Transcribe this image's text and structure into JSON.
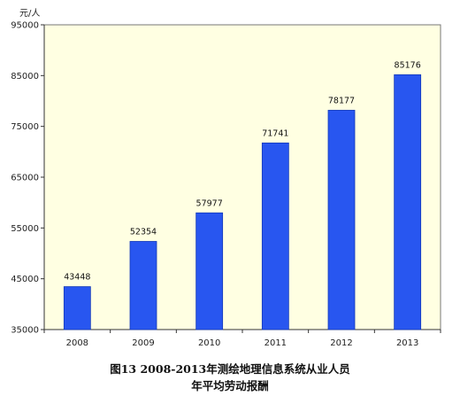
{
  "chart_data": {
    "type": "bar",
    "unit_label": "元/人",
    "categories": [
      "2008",
      "2009",
      "2010",
      "2011",
      "2012",
      "2013"
    ],
    "values": [
      43448,
      52354,
      57977,
      71741,
      78177,
      85176
    ],
    "data_labels": [
      "43448",
      "52354",
      "57977",
      "71741",
      "78177",
      "85176"
    ],
    "yticks": [
      35000,
      45000,
      55000,
      65000,
      75000,
      85000,
      95000
    ],
    "ytick_labels": [
      "35000",
      "45000",
      "55000",
      "65000",
      "75000",
      "85000",
      "95000"
    ],
    "ylim": [
      35000,
      95000
    ],
    "grid": false,
    "colors": {
      "bar": "#2856f0",
      "bar_edge": "#1238b8",
      "plot_background": "#ffffe2",
      "frame": "#777777"
    }
  },
  "caption": {
    "line1": "图13   2008-2013年测绘地理信息系统从业人员",
    "line2": "年平均劳动报酬"
  }
}
